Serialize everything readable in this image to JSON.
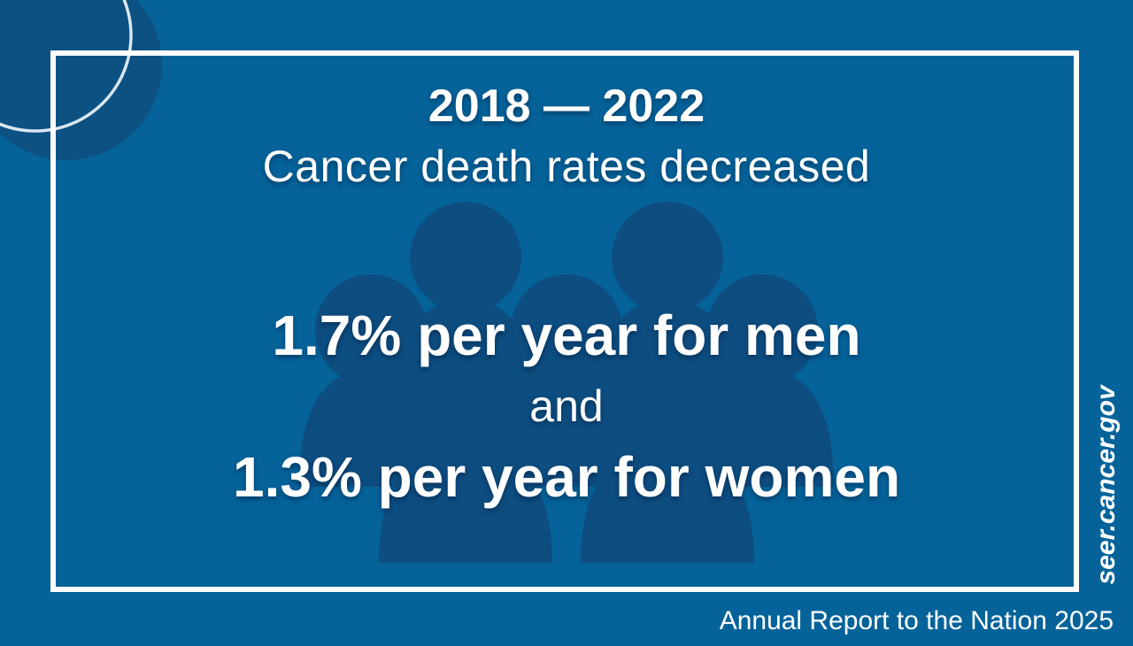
{
  "headline": {
    "years": "2018 — 2022",
    "subtitle": "Cancer death rates decreased"
  },
  "stats": {
    "men": "1.7% per year for men",
    "connector": "and",
    "women": "1.3% per year for women"
  },
  "footer": {
    "website": "seer.cancer.gov",
    "report": "Annual Report to the Nation 2025"
  },
  "colors": {
    "background": "#05639a",
    "silhouettes": "#0d4d80",
    "frame": "#ffffff",
    "text": "#ffffff"
  },
  "icons": {
    "background": "people-group-silhouette-icon",
    "corner": "corner-circle-decoration"
  }
}
